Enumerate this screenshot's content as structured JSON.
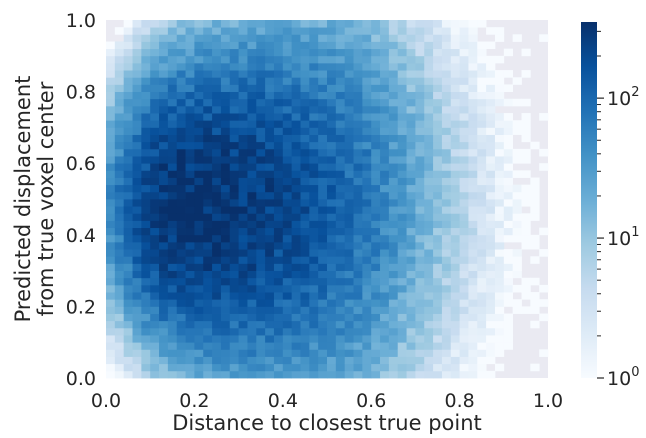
{
  "chart_data": {
    "type": "heatmap",
    "title": "",
    "xlabel": "Distance to closest true point",
    "ylabel_lines": [
      "Predicted displacement",
      "from true voxel center"
    ],
    "xlim": [
      0.0,
      1.0
    ],
    "ylim": [
      0.0,
      1.0
    ],
    "bins": [
      50,
      50
    ],
    "x_ticks": [
      0.0,
      0.2,
      0.4,
      0.6,
      0.8,
      1.0
    ],
    "x_tick_labels": [
      "0.0",
      "0.2",
      "0.4",
      "0.6",
      "0.8",
      "1.0"
    ],
    "y_ticks": [
      0.0,
      0.2,
      0.4,
      0.6,
      0.8,
      1.0
    ],
    "y_tick_labels": [
      "0.0",
      "0.2",
      "0.4",
      "0.6",
      "0.8",
      "1.0"
    ],
    "grid": false,
    "background_color": "#eaeaf2",
    "colormap": "Blues",
    "colorbar": {
      "scale": "log",
      "range": [
        1,
        350
      ],
      "major_ticks": [
        {
          "value": 1,
          "base": "10",
          "exp": "0"
        },
        {
          "value": 10,
          "base": "10",
          "exp": "1"
        },
        {
          "value": 100,
          "base": "10",
          "exp": "2"
        }
      ],
      "low_color": "#f7fbff",
      "high_color": "#08306b"
    },
    "density_peak": {
      "x": 0.17,
      "y": 0.48,
      "max_count": 350
    }
  }
}
